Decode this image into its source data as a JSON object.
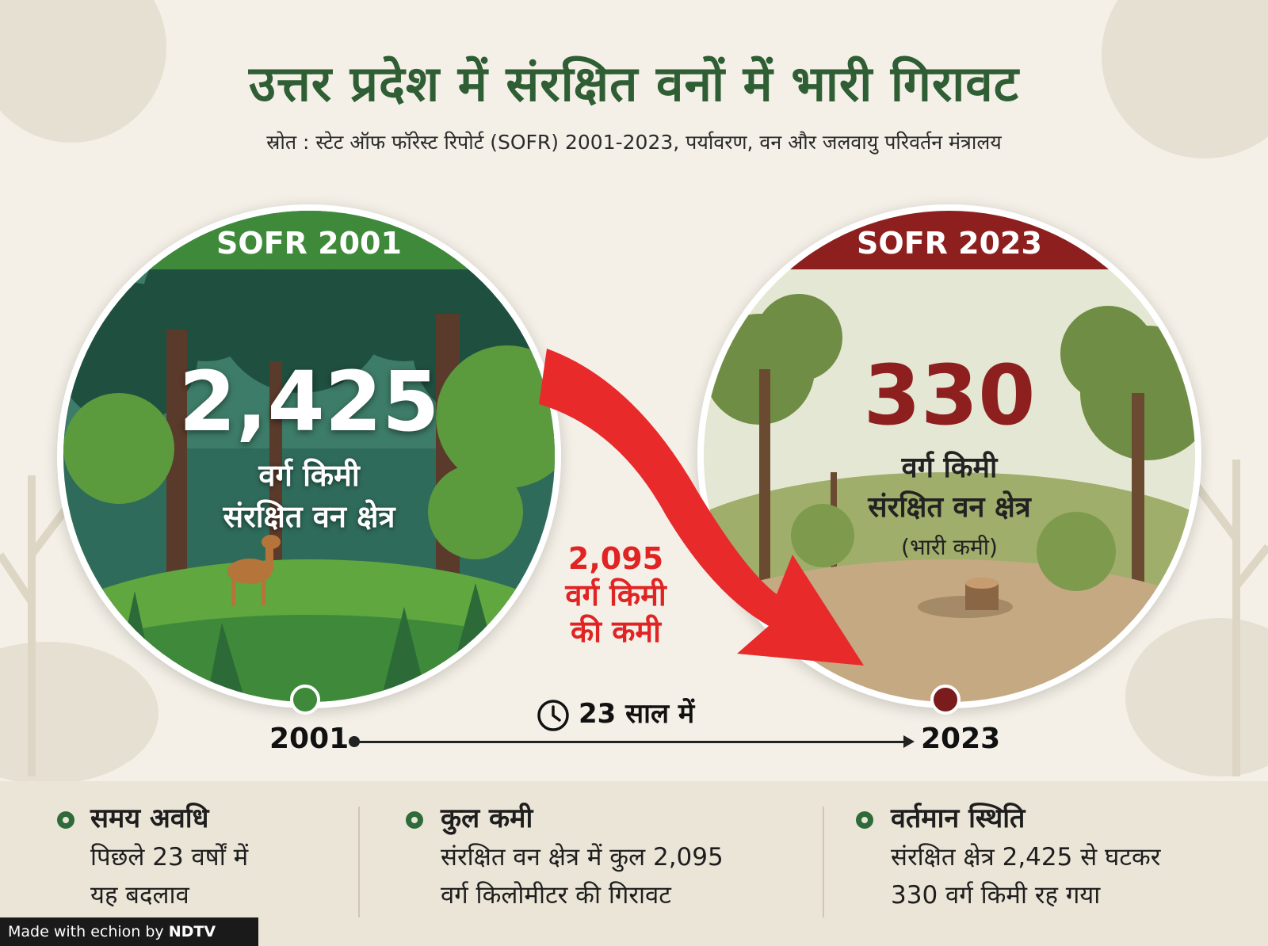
{
  "title": "उत्तर प्रदेश में संरक्षित वनों में भारी गिरावट",
  "source": "स्रोत : स्टेट ऑफ फॉरेस्ट रिपोर्ट (SOFR) 2001-2023, पर्यावरण, वन और जलवायु परिवर्तन मंत्रालय",
  "colors": {
    "green": "#3f8a3a",
    "maroon": "#8e1f1f",
    "red": "#e02424"
  },
  "sofr2001": {
    "banner": "SOFR 2001",
    "value": "2,425",
    "unit": "वर्ग किमी",
    "label": "संरक्षित वन क्षेत्र"
  },
  "sofr2023": {
    "banner": "SOFR 2023",
    "value": "330",
    "unit": "वर्ग किमी",
    "label": "संरक्षित वन क्षेत्र",
    "note": "(भारी कमी)"
  },
  "decline": {
    "value": "2,095",
    "unit": "वर्ग किमी",
    "suffix": "की कमी"
  },
  "timeline": {
    "start_year": "2001",
    "end_year": "2023",
    "span": "23 साल में",
    "icon": "clock-icon"
  },
  "cards": [
    {
      "heading": "समय अवधि",
      "line1": "पिछले 23 वर्षों में",
      "line2": "यह बदलाव"
    },
    {
      "heading": "कुल कमी",
      "line1": "संरक्षित वन क्षेत्र में कुल 2,095",
      "line2": "वर्ग किलोमीटर की गिरावट"
    },
    {
      "heading": "वर्तमान स्थिति",
      "line1": "संरक्षित क्षेत्र 2,425 से घटकर",
      "line2": "330 वर्ग किमी रह गया"
    }
  ],
  "footer": {
    "made_with": "Made with",
    "brand": "echion",
    "by": "by",
    "partner": "NDTV"
  }
}
